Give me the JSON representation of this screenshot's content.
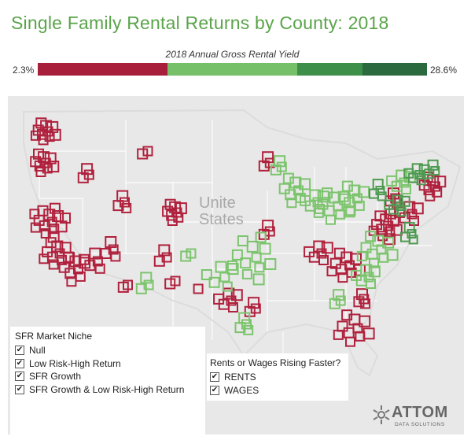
{
  "title": "Single Family Rental Returns by County: 2018",
  "legend": {
    "title": "2018 Annual Gross Rental Yield",
    "min_label": "2.3%",
    "max_label": "28.6%",
    "colors": [
      "#a81f3b",
      "#a81f3b",
      "#76c06a",
      "#76c06a",
      "#3d8f4a",
      "#2a6a3e"
    ]
  },
  "map": {
    "country_label_line1": "Unite",
    "country_label_line2": "States",
    "colors": {
      "red": "#b0213d",
      "light_green": "#7cc46d",
      "green": "#4d9a50",
      "land": "#e8e8e8",
      "border": "#ffffff"
    }
  },
  "niche_filter": {
    "title": "SFR Market Niche",
    "items": [
      {
        "label": "Null",
        "checked": "✔"
      },
      {
        "label": "Low Risk-High Return",
        "checked": "✔"
      },
      {
        "label": "SFR Growth",
        "checked": "✔"
      },
      {
        "label": "SFR Growth & Low Risk-High Return",
        "checked": "✔"
      }
    ]
  },
  "rents_filter": {
    "title": "Rents or Wages Rising Faster?",
    "items": [
      {
        "label": "RENTS",
        "checked": "✔"
      },
      {
        "label": "WAGES",
        "checked": "✔"
      }
    ]
  },
  "logo": {
    "name": "ATTOM",
    "subtitle": "DATA SOLUTIONS",
    "icon": "attom-logo-icon"
  }
}
